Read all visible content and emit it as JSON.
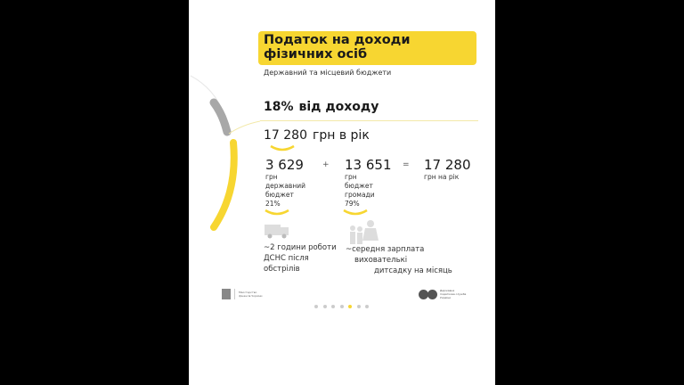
{
  "title": "Податок на доходи фізичних осіб",
  "subtitle": "Державний та місцевий бюджети",
  "rate": {
    "percent": "18%",
    "label": "від доходу"
  },
  "annual": {
    "amount": "17 280",
    "label": "грн в рік"
  },
  "breakdown": {
    "state": {
      "amount": "3 629",
      "unit": "грн",
      "label1": "державний",
      "label2": "бюджет",
      "share": "21%"
    },
    "plus": "+",
    "community": {
      "amount": "13 651",
      "unit": "грн",
      "label1": "бюджет",
      "label2": "громади",
      "share": "79%"
    },
    "equals": "=",
    "total": {
      "amount": "17 280",
      "unit": "грн на рік"
    }
  },
  "equivalents": {
    "state": {
      "icon": "fire-truck-icon",
      "line1": "~2 години роботи",
      "line2": "ДСНС після",
      "line3": "обстрілів"
    },
    "community": {
      "icon": "family-icon",
      "line1": "~середня зарплата",
      "line2": "вихователькі",
      "line3": "дитсадку на місяць"
    }
  },
  "footer": {
    "left_logo": "Міністерство фінансів України",
    "right_logo": "Державна податкова служба України",
    "pagination": {
      "total": 7,
      "active": 5
    }
  },
  "colors": {
    "accent": "#f7d631",
    "gray": "#a8a8a8"
  }
}
